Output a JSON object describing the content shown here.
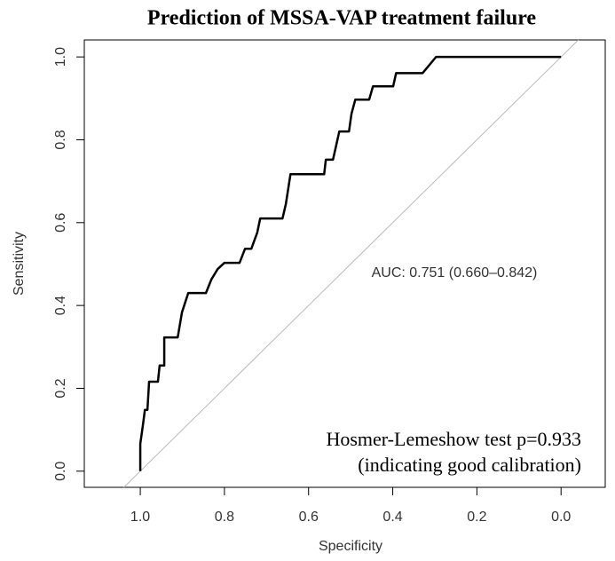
{
  "chart_data": {
    "type": "line",
    "title": "Prediction of MSSA-VAP treatment failure",
    "x_label": "Specificity",
    "y_label": "Sensitivity",
    "x": [
      1,
      1,
      0.994,
      0.989,
      0.983,
      0.979,
      0.958,
      0.954,
      0.943,
      0.943,
      0.911,
      0.901,
      0.886,
      0.844,
      0.831,
      0.816,
      0.8,
      0.764,
      0.751,
      0.736,
      0.722,
      0.715,
      0.662,
      0.654,
      0.643,
      0.563,
      0.559,
      0.542,
      0.527,
      0.504,
      0.498,
      0.489,
      0.456,
      0.447,
      0.399,
      0.392,
      0.329,
      0.297,
      0
    ],
    "values": [
      0,
      0.066,
      0.109,
      0.148,
      0.148,
      0.216,
      0.216,
      0.255,
      0.255,
      0.323,
      0.323,
      0.383,
      0.43,
      0.43,
      0.463,
      0.488,
      0.503,
      0.503,
      0.537,
      0.537,
      0.576,
      0.61,
      0.61,
      0.645,
      0.717,
      0.717,
      0.752,
      0.752,
      0.82,
      0.82,
      0.863,
      0.897,
      0.897,
      0.929,
      0.929,
      0.961,
      0.961,
      1,
      1
    ],
    "color": "#000000",
    "diagonal": true,
    "annotations": [
      "AUC: 0.751 (0.660–0.842)",
      "Hosmer-Lemeshow test p=0.933",
      "(indicating good calibration)"
    ],
    "xlim": [
      1.133,
      -0.105
    ],
    "xticks": [
      {
        "value": 1,
        "label": "1.0"
      },
      0.8,
      0.6,
      0.4,
      0.2,
      {
        "value": 0,
        "label": "0.0"
      }
    ],
    "ylim": [
      -0.039,
      1.041
    ],
    "yticks": [
      {
        "value": 0,
        "label": "0.0"
      },
      0.2,
      0.4,
      0.6,
      0.8,
      {
        "value": 1,
        "label": "1.0"
      }
    ]
  }
}
